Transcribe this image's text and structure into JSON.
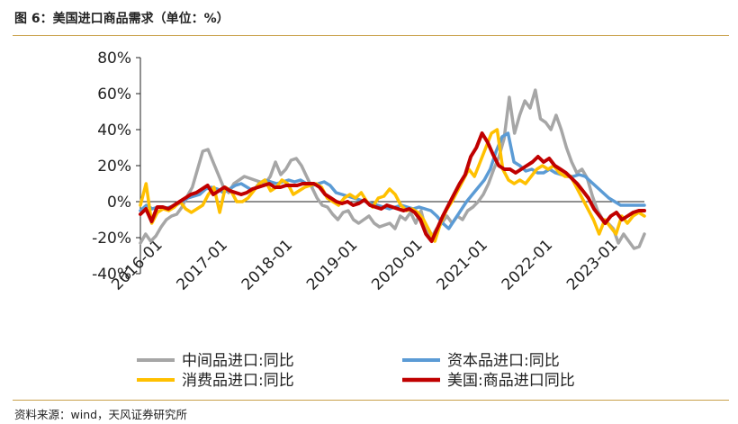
{
  "header": {
    "title": "图 6：美国进口商品需求（单位：%）"
  },
  "footer": {
    "source": "资料来源：wind，天风证券研究所"
  },
  "chart_data": {
    "type": "line",
    "xlabel": "",
    "ylabel": "",
    "x_start": "2016-01",
    "x_end": "2023-10",
    "x_tick_labels": [
      "2016-01",
      "2017-01",
      "2018-01",
      "2019-01",
      "2020-01",
      "2021-01",
      "2022-01",
      "2023-01"
    ],
    "ylim": [
      -40,
      80
    ],
    "y_ticks": [
      -40,
      -20,
      0,
      20,
      40,
      60,
      80
    ],
    "y_tick_format": "{v}%",
    "legend_position": "bottom",
    "series": [
      {
        "name": "中间品进口:同比",
        "color": "#a6a6a6",
        "values": [
          -23,
          -18,
          -22,
          -19,
          -14,
          -10,
          -8,
          -7,
          -3,
          3,
          8,
          18,
          28,
          29,
          22,
          15,
          8,
          5,
          10,
          12,
          14,
          13,
          12,
          11,
          10,
          14,
          22,
          15,
          18,
          23,
          24,
          20,
          14,
          8,
          2,
          -2,
          -3,
          -7,
          -10,
          -6,
          -5,
          -10,
          -12,
          -10,
          -8,
          -12,
          -14,
          -13,
          -12,
          -15,
          -8,
          -10,
          -6,
          -12,
          -5,
          -16,
          -20,
          -15,
          -12,
          -8,
          -12,
          -8,
          -10,
          -5,
          -3,
          0,
          4,
          10,
          18,
          25,
          35,
          58,
          38,
          48,
          56,
          52,
          62,
          46,
          44,
          40,
          48,
          40,
          30,
          22,
          16,
          18,
          13,
          3,
          -5,
          -10,
          -12,
          -15,
          -23,
          -18,
          -22,
          -26,
          -25,
          -18
        ]
      },
      {
        "name": "资本品进口:同比",
        "color": "#5b9bd5",
        "values": [
          -5,
          -2,
          -4,
          -3,
          -4,
          -3,
          -2,
          0,
          2,
          3,
          4,
          7,
          8,
          7,
          5,
          7,
          9,
          10,
          8,
          6,
          10,
          12,
          11,
          10,
          11,
          12,
          11,
          12,
          10,
          9,
          10,
          11,
          9,
          5,
          4,
          3,
          2,
          1,
          0,
          -1,
          -2,
          -3,
          -4,
          -3,
          -2,
          -3,
          -4,
          -3,
          -4,
          -5,
          -8,
          -12,
          -15,
          -10,
          -5,
          0,
          4,
          8,
          12,
          18,
          28,
          36,
          38,
          22,
          20,
          17,
          18,
          16,
          16,
          18,
          16,
          15,
          14,
          14,
          15,
          14,
          11,
          8,
          5,
          2,
          0,
          -2,
          -2,
          -2,
          -2,
          -2
        ]
      },
      {
        "name": "消费品进口:同比",
        "color": "#ffc000",
        "values": [
          -2,
          10,
          -12,
          -6,
          -4,
          -5,
          -3,
          0,
          -4,
          -6,
          -4,
          -2,
          4,
          8,
          -6,
          8,
          6,
          0,
          0,
          2,
          6,
          10,
          12,
          6,
          8,
          12,
          10,
          4,
          6,
          8,
          9,
          10,
          8,
          2,
          0,
          -2,
          2,
          4,
          2,
          5,
          0,
          -3,
          2,
          3,
          7,
          4,
          -2,
          -5,
          -4,
          -6,
          -10,
          -16,
          -22,
          -12,
          -5,
          0,
          6,
          12,
          18,
          14,
          22,
          30,
          38,
          40,
          18,
          12,
          10,
          12,
          10,
          14,
          18,
          20,
          18,
          20,
          16,
          14,
          14,
          8,
          2,
          -4,
          -10,
          -18,
          -10,
          -14,
          -18,
          -8,
          -12,
          -8,
          -6,
          -8
        ]
      },
      {
        "name": "美国:商品进口同比",
        "color": "#c00000",
        "values": [
          -7,
          -4,
          -11,
          -3,
          -3,
          -4,
          -2,
          0,
          2,
          4,
          5,
          7,
          9,
          4,
          6,
          8,
          6,
          5,
          4,
          5,
          7,
          8,
          9,
          10,
          8,
          8,
          9,
          9,
          9,
          10,
          10,
          10,
          8,
          4,
          2,
          0,
          -1,
          0,
          -2,
          -1,
          1,
          -2,
          -3,
          -4,
          -2,
          -3,
          -4,
          -5,
          -4,
          -6,
          -10,
          -18,
          -22,
          -15,
          -8,
          -2,
          4,
          10,
          15,
          25,
          30,
          38,
          33,
          26,
          20,
          18,
          18,
          16,
          18,
          20,
          22,
          25,
          22,
          24,
          20,
          18,
          16,
          13,
          10,
          6,
          2,
          -4,
          -8,
          -12,
          -8,
          -6,
          -10,
          -8,
          -6,
          -5,
          -5
        ]
      }
    ]
  }
}
